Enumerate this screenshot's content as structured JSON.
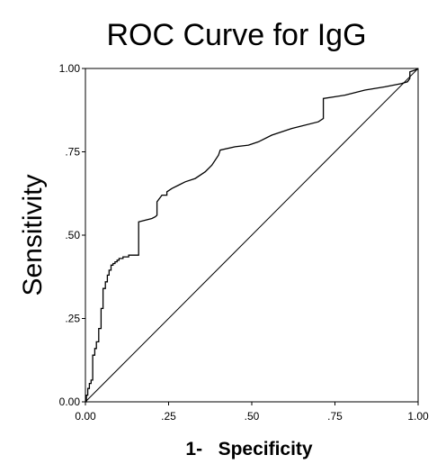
{
  "chart_data": {
    "type": "line",
    "title": "ROC Curve for IgG",
    "xlabel": "1-   Specificity",
    "ylabel": "Sensitivity",
    "xlim": [
      0,
      1
    ],
    "ylim": [
      0,
      1
    ],
    "x_ticks": [
      0,
      0.25,
      0.5,
      0.75,
      1
    ],
    "x_tick_labels": [
      "0.00",
      ".25",
      ".50",
      ".75",
      "1.00"
    ],
    "y_ticks": [
      0,
      0.25,
      0.5,
      0.75,
      1
    ],
    "y_tick_labels": [
      "0.00",
      ".25",
      ".50",
      ".75",
      "1.00"
    ],
    "grid": false,
    "legend": "none",
    "reference_line": {
      "x": [
        0,
        1
      ],
      "y": [
        0,
        1
      ]
    },
    "series": [
      {
        "x": [
          0.0,
          0.003,
          0.003,
          0.007,
          0.007,
          0.012,
          0.012,
          0.017,
          0.017,
          0.022,
          0.022,
          0.028,
          0.028,
          0.033,
          0.033,
          0.04,
          0.04,
          0.047,
          0.047,
          0.053,
          0.053,
          0.06,
          0.06,
          0.066,
          0.066,
          0.071,
          0.071,
          0.077,
          0.077,
          0.083,
          0.083,
          0.089,
          0.089,
          0.095,
          0.095,
          0.101,
          0.101,
          0.113,
          0.113,
          0.13,
          0.13,
          0.16,
          0.16,
          0.2,
          0.21,
          0.215,
          0.215,
          0.23,
          0.245,
          0.245,
          0.26,
          0.28,
          0.3,
          0.33,
          0.36,
          0.38,
          0.4,
          0.405,
          0.45,
          0.49,
          0.52,
          0.56,
          0.62,
          0.7,
          0.715,
          0.715,
          0.75,
          0.78,
          0.84,
          0.9,
          0.95,
          0.968,
          0.975,
          0.975,
          0.99,
          1.0
        ],
        "y": [
          0.0,
          0.0,
          0.02,
          0.02,
          0.04,
          0.04,
          0.055,
          0.055,
          0.065,
          0.065,
          0.14,
          0.14,
          0.16,
          0.16,
          0.18,
          0.18,
          0.22,
          0.22,
          0.28,
          0.28,
          0.34,
          0.34,
          0.36,
          0.36,
          0.38,
          0.38,
          0.395,
          0.395,
          0.41,
          0.41,
          0.415,
          0.415,
          0.42,
          0.42,
          0.425,
          0.425,
          0.43,
          0.43,
          0.435,
          0.435,
          0.44,
          0.44,
          0.54,
          0.55,
          0.555,
          0.56,
          0.6,
          0.62,
          0.62,
          0.63,
          0.64,
          0.65,
          0.66,
          0.67,
          0.69,
          0.71,
          0.74,
          0.755,
          0.765,
          0.77,
          0.78,
          0.8,
          0.82,
          0.84,
          0.85,
          0.91,
          0.915,
          0.92,
          0.935,
          0.945,
          0.955,
          0.96,
          0.97,
          0.99,
          0.995,
          1.0
        ]
      }
    ]
  }
}
